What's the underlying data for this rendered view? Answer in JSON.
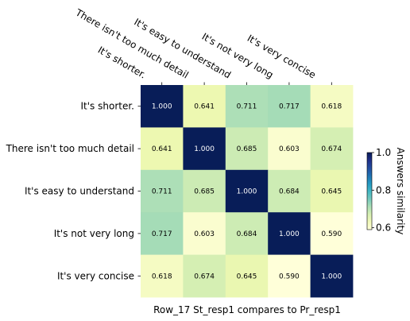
{
  "chart_data": {
    "type": "heatmap",
    "row_labels": [
      "It's shorter.",
      "There isn't too much detail",
      "It's easy to understand",
      "It's not very long",
      "It's very concise"
    ],
    "col_labels": [
      "It's shorter.",
      "There isn't too much detail",
      "It's easy to understand",
      "It's not very long",
      "It's very concise"
    ],
    "values": [
      [
        1.0,
        0.641,
        0.711,
        0.717,
        0.618
      ],
      [
        0.641,
        1.0,
        0.685,
        0.603,
        0.674
      ],
      [
        0.711,
        0.685,
        1.0,
        0.684,
        0.645
      ],
      [
        0.717,
        0.603,
        0.684,
        1.0,
        0.59
      ],
      [
        0.618,
        0.674,
        0.645,
        0.59,
        1.0
      ]
    ],
    "value_format": "0.000",
    "xlabel": "Row_17 St_resp1 compares to Pr_resp1",
    "colorbar": {
      "label": "Answers similarity",
      "range": [
        0.59,
        1.0
      ],
      "ticks": [
        0.6,
        0.8,
        1.0
      ],
      "tick_labels": [
        "0.6",
        "0.8",
        "1.0"
      ],
      "colormap": "YlGnBu"
    }
  }
}
